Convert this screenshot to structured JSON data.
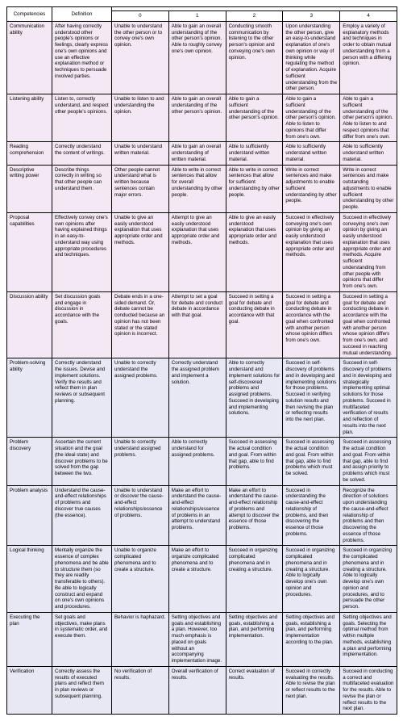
{
  "headers": {
    "competencies": "Competencies",
    "definition": "Definition",
    "levels_group": "",
    "lv0": "0",
    "lv1": "1",
    "lv2": "2",
    "lv3": "3",
    "lv4": "4"
  },
  "rows": [
    {
      "bg": "#f3e8f3",
      "competency": "Communication ability",
      "definition": "After having correctly understood other people's opinions or feelings, clearly express one's own opinions and use an effective explanation method or techniques to persuade involved parties.",
      "l0": "Unable to understand the other person or to convey one's own opinion.",
      "l1": "Able to gain an overall understanding of the other person's opinion. Able to roughly convey one's own opinion.",
      "l2": "Conducting smooth communication by listening to the other person's opinion and conveying one's own opinion.",
      "l3": "Upon understanding the other person, give an easy-to-understand explanation of one's own opinion or way of thinking while regulating the method of explanation. Acquire sufficient understanding from the other person.",
      "l4": "Employ a variety of explanatory methods and techniques in order to obtain mutual understanding from a person with a differing opinion."
    },
    {
      "bg": "#f3e8f3",
      "competency": "Listening ability",
      "definition": "Listen to, correctly understand, and respect other people's opinions.",
      "l0": "Unable to listen to and understanding the opinion.",
      "l1": "Able to gain an overall understanding of the other person's opinion.",
      "l2": "Able to gain a sufficient understanding of the other person's opinion.",
      "l3": "Able to gain a sufficient understanding of the other person's opinion. Able to listen to opinions that differ from one's own.",
      "l4": "Able to gain a sufficient understanding of the other person's opinion. Able to listen to and respect opinions that differ from one's own."
    },
    {
      "bg": "#f3e8f3",
      "competency": "Reading comprehension",
      "definition": "Correctly understand the content of writings.",
      "l0": "Unable to understand written material.",
      "l1": "Able to gain an overall understanding of written material.",
      "l2": "Able to sufficiently understand written material.",
      "l3": "Able to sufficiently understand written material.",
      "l4": "Able to sufficiently understand written material."
    },
    {
      "bg": "#f3e8f3",
      "competency": "Descriptive writing power",
      "definition": "Describe things correctly in writing so that other people can understand them.",
      "l0": "Other people cannot understand what is written because sentences contain major errors.",
      "l1": "Able to write in correct sentences that allow for overall understanding by other people.",
      "l2": "Able to write in correct sentences that allow for sufficient understanding by other people.",
      "l3": "Write in correct sentences and make adjustments to enable sufficient understanding by other people.",
      "l4": "Write in correct sentences and make outstanding adjustments to enable sufficient understanding by other people."
    },
    {
      "bg": "#f3e8f3",
      "competency": "Proposal capabilities",
      "definition": "Effectively convey one's own opinions after having explained things in an easy-to-understand way using appropriate procedures and techniques.",
      "l0": "Unable to give an easily understood explanation that uses appropriate order and methods.",
      "l1": "Attempt to give an easily understood explanation that uses appropriate order and methods.",
      "l2": "Able to give an easily understood explanation that uses appropriate order and methods.",
      "l3": "Succeed in effectively conveying one's own opinion by giving an easily understood explanation that uses appropriate order and methods.",
      "l4": "Succeed in effectively conveying one's own opinion by giving an easily understood explanation that uses appropriate order and methods. Acquire sufficient understanding from other people with opinions that differ from one's own."
    },
    {
      "bg": "#f3e8f3",
      "competency": "Discussion ability",
      "definition": "Set discussion goals and engage in discussion in accordance with the goals.",
      "l0": "Debate ends in a one-sided demand. Or, debate cannot be conducted because an opinion has not been stated or the stated opinion is incorrect.",
      "l1": "Attempt to set a goal for debate and conduct debate in accordance with that goal.",
      "l2": "Succeed in setting a goal for debate and conducting debate in accordance with that goal.",
      "l3": "Succeed in setting a goal for debate and conducting debate in accordance with the goal when confronted with another person whose opinion differs from one's own.",
      "l4": "Succeed in setting a goal for debate and conducting debate in accordance with the goal when confronted with another person whose opinion differs from one's own, and succeed in reaching mutual understanding."
    },
    {
      "bg": "#e8e8f5",
      "competency": "Problem-solving ability",
      "definition": "Correctly understand the issues. Devise and implement solutions. Verify the results and reflect them in plan reviews or subsequent planning.",
      "l0": "Unable to correctly understand the assigned problems.",
      "l1": "Correctly understand the assigned problem and implement a solution.",
      "l2": "Able to correctly understand and implement solutions for self-discovered problems and assigned problems. Succeed in developing and implementing solutions.",
      "l3": "Succeed in self-discovery of problems and in developing and implementing solutions for those problems. Succeed in verifying solution results and then revising the plan or reflecting results into the next plan.",
      "l4": "Succeed in self-discovery of problems and in developing and strategically implementing optimal solutions for those problems. Succeed in multifaceted verification of results and reflection of results into the next plan."
    },
    {
      "bg": "#e8e8f5",
      "competency": "Problem discovery",
      "definition": "Ascertain the current situation and the goal (the ideal state) and discover problems to be solved from the gap between the two.",
      "l0": "Unable to correctly understand assigned problems.",
      "l1": "Able to correctly understand for assigned problems.",
      "l2": "Succeed in assessing the actual condition and goal. From within that gap, able to find problems.",
      "l3": "Succeed in assessing the actual condition and goal. From within that gap, able to find problems which must be solved.",
      "l4": "Succeed in assessing the actual condition and goal. From within that gap, able to find and assign priority to problems which must be solved."
    },
    {
      "bg": "#e8e8f5",
      "competency": "Problem analysis",
      "definition": "Understand the cause-and-effect relationships of problems and discover true causes (the essence).",
      "l0": "Unable to understand or discover the cause-and-effect relationships/essence of problems.",
      "l1": "Make an effort to understand the cause-and-effect relationships/essence of problems in an attempt to understand problems.",
      "l2": "Make an effort to understand the cause-and-effect relationship of problems and attempt to discover the essence of those problems.",
      "l3": "Succeed in understanding the cause-and-effect relationship of problems, and then discovering the essence of those problems.",
      "l4": "Recognize the direction of solutions upon understanding the cause-and-effect relationship of problems and then discovering the essence of those problems."
    },
    {
      "bg": "#e8e8f5",
      "competency": "Logical thinking",
      "definition": "Mentally organize the essence of complex phenomena and be able to structure them (so they are readily transferable to others). Be able to logically construct and expand on one's own opinions and procedures.",
      "l0": "Unable to organize complicated phenomena and to create a structure.",
      "l1": "Make an effort to organize complicated phenomena and to create a structure.",
      "l2": "Succeed in organizing complicated phenomena and in creating a structure.",
      "l3": "Succeed in organizing complicated phenomena and in creating a structure. Able to logically develop one's own opinion and procedures.",
      "l4": "Succeed in organizing the complicated phenomena and in creating a structure. Able to logically develop one's own opinion and procedures, and to persuade the other person."
    },
    {
      "bg": "#e8e8f5",
      "competency": "Executing the plan",
      "definition": "Set goals and objectives, make plans in systematic order, and execute them.",
      "l0": "Behavior is haphazard.",
      "l1": "Setting objectives and goals and establishing a plan. However, too much emphasis is placed on goals without an accompanying implementation image.",
      "l2": "Setting objectives and goals, establishing a plan, and performing implementation.",
      "l3": "Setting objectives and goals, establishing a plan, and performing implementation according to the plan.",
      "l4": "Setting objectives and goals. Selecting the optimal method from within multiple methods, establishing a plan and performing implementation."
    },
    {
      "bg": "#e8e8f5",
      "competency": "Verification",
      "definition": "Correctly assess the results of executed plans and reflect them in plan reviews or subsequent planning.",
      "l0": "No verification of results.",
      "l1": "Overall verification of results.",
      "l2": "Correct evaluation of results.",
      "l3": "Succeed in correctly evaluating the results. Able to revise the plan or reflect results to the next plan.",
      "l4": "Succeed in conducting a correct and multifaceted evaluation for the results. Able to revise the plan or reflect results to the next plan."
    }
  ]
}
